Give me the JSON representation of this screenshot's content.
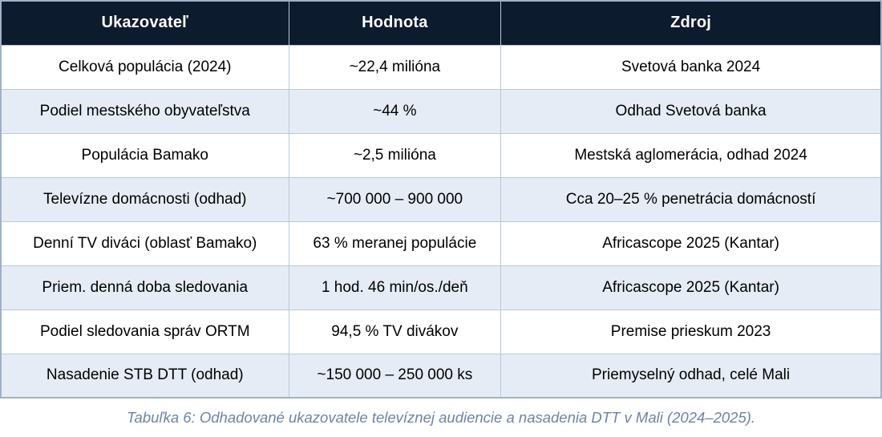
{
  "table": {
    "columns": [
      "Ukazovateľ",
      "Hodnota",
      "Zdroj"
    ],
    "rows": [
      [
        "Celková populácia (2024)",
        "~22,4 milióna",
        "Svetová banka 2024"
      ],
      [
        "Podiel mestského obyvateľstva",
        "~44 %",
        "Odhad Svetová banka"
      ],
      [
        "Populácia Bamako",
        "~2,5 milióna",
        "Mestská aglomerácia, odhad 2024"
      ],
      [
        "Televízne domácnosti (odhad)",
        "~700 000 – 900 000",
        "Cca 20–25 % penetrácia domácností"
      ],
      [
        "Denní TV diváci (oblasť Bamako)",
        "63 % meranej populácie",
        "Africascope 2025 (Kantar)"
      ],
      [
        "Priem. denná doba sledovania",
        "1 hod. 46 min/os./deň",
        "Africascope 2025 (Kantar)"
      ],
      [
        "Podiel sledovania správ ORTM",
        "94,5 % TV divákov",
        "Premise prieskum 2023"
      ],
      [
        "Nasadenie STB DTT (odhad)",
        "~150 000 – 250 000 ks",
        "Priemyselný odhad, celé Mali"
      ]
    ]
  },
  "caption": "Tabuľka 6: Odhadované ukazovatele televíznej audiencie a nasadenia DTT v Mali (2024–2025).",
  "colors": {
    "header_bg": "#0d1b2e",
    "header_text": "#ffffff",
    "row_alt_bg": "#e6ecf5",
    "border": "#b9c8dc",
    "caption_text": "#6d84a4"
  }
}
